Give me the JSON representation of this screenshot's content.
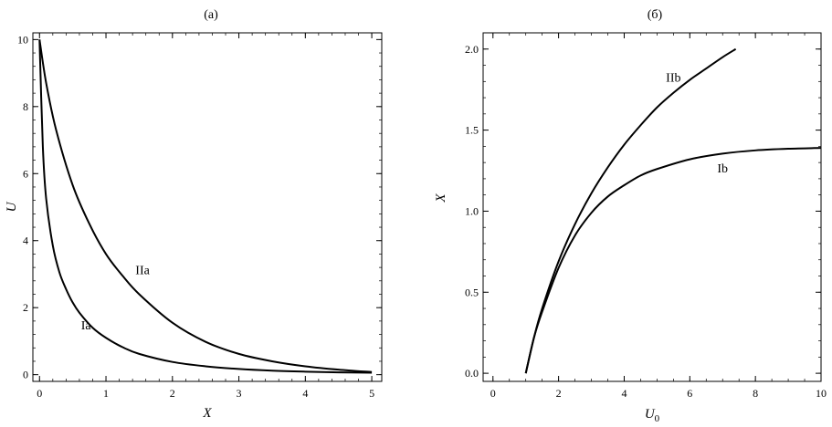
{
  "chart_data": [
    {
      "type": "line",
      "title": "(a)",
      "xlabel": "X",
      "ylabel": "U",
      "xlim": [
        -0.1,
        5.15
      ],
      "ylim": [
        -0.2,
        10.2
      ],
      "xticks": [
        0,
        1,
        2,
        3,
        4,
        5
      ],
      "yticks": [
        0,
        2,
        4,
        6,
        8,
        10
      ],
      "grid": false,
      "series": [
        {
          "name": "Ia",
          "x": [
            0,
            0.05,
            0.1,
            0.2,
            0.3,
            0.4,
            0.5,
            0.6,
            0.8,
            1.0,
            1.25,
            1.5,
            2.0,
            2.5,
            3.0,
            3.5,
            4.0,
            4.5,
            5.0
          ],
          "y": [
            10,
            6.8,
            5.25,
            3.85,
            3.05,
            2.55,
            2.15,
            1.85,
            1.4,
            1.1,
            0.82,
            0.62,
            0.38,
            0.25,
            0.17,
            0.12,
            0.09,
            0.07,
            0.06
          ]
        },
        {
          "name": "IIa",
          "x": [
            0,
            0.1,
            0.25,
            0.5,
            0.75,
            1.0,
            1.25,
            1.5,
            2.0,
            2.5,
            3.0,
            3.5,
            4.0,
            4.5,
            5.0
          ],
          "y": [
            10,
            8.7,
            7.3,
            5.65,
            4.5,
            3.6,
            2.95,
            2.4,
            1.55,
            0.98,
            0.62,
            0.4,
            0.25,
            0.15,
            0.08
          ]
        }
      ],
      "annotations": [
        {
          "text": "Ia",
          "x": 0.7,
          "y": 1.35
        },
        {
          "text": "IIa",
          "x": 1.55,
          "y": 3.0
        }
      ]
    },
    {
      "type": "line",
      "title": "(б)",
      "xlabel": "U0",
      "ylabel": "X",
      "xlim": [
        -0.3,
        10
      ],
      "ylim": [
        -0.05,
        2.1
      ],
      "xticks": [
        0,
        2,
        4,
        6,
        8,
        10
      ],
      "yticks": [
        0.0,
        0.5,
        1.0,
        1.5,
        2.0
      ],
      "grid": false,
      "series": [
        {
          "name": "Ib",
          "x": [
            1.0,
            1.25,
            1.5,
            2.0,
            2.5,
            3.0,
            3.5,
            4.0,
            4.5,
            5.0,
            6.0,
            7.0,
            8.0,
            9.0,
            10.0
          ],
          "y": [
            0.0,
            0.22,
            0.38,
            0.65,
            0.85,
            0.99,
            1.09,
            1.16,
            1.22,
            1.26,
            1.32,
            1.355,
            1.375,
            1.385,
            1.39
          ]
        },
        {
          "name": "IIb",
          "x": [
            1.0,
            1.25,
            1.5,
            2.0,
            2.5,
            3.0,
            3.5,
            4.0,
            4.5,
            5.0,
            5.5,
            6.0,
            6.5,
            7.0,
            7.4
          ],
          "y": [
            0.0,
            0.22,
            0.4,
            0.69,
            0.92,
            1.11,
            1.27,
            1.41,
            1.53,
            1.64,
            1.73,
            1.81,
            1.88,
            1.95,
            2.0
          ]
        }
      ],
      "annotations": [
        {
          "text": "Ib",
          "x": 7.0,
          "y": 1.24
        },
        {
          "text": "IIb",
          "x": 5.5,
          "y": 1.8
        }
      ]
    }
  ]
}
